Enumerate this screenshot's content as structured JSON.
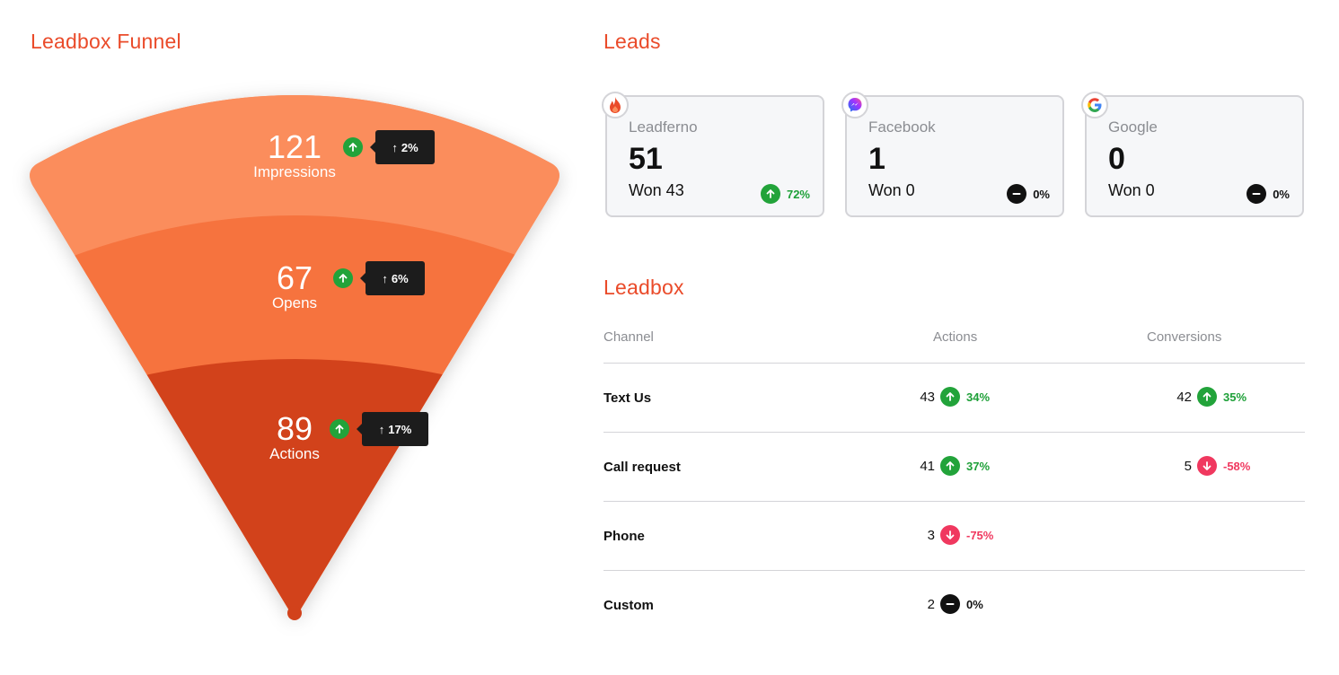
{
  "funnel": {
    "title": "Leadbox Funnel",
    "stages": [
      {
        "value": "121",
        "label": "Impressions",
        "change": "2%",
        "trend": "up"
      },
      {
        "value": "67",
        "label": "Opens",
        "change": "6%",
        "trend": "up"
      },
      {
        "value": "89",
        "label": "Actions",
        "change": "17%",
        "trend": "up"
      }
    ],
    "colors": [
      "#fb8d5c",
      "#f6733e",
      "#d2421b"
    ]
  },
  "leads": {
    "title": "Leads",
    "cards": [
      {
        "name": "Leadferno",
        "count": "51",
        "won": "Won 43",
        "change": "72%",
        "trend": "up",
        "icon": "flame-icon"
      },
      {
        "name": "Facebook",
        "count": "1",
        "won": "Won 0",
        "change": "0%",
        "trend": "flat",
        "icon": "messenger-icon"
      },
      {
        "name": "Google",
        "count": "0",
        "won": "Won 0",
        "change": "0%",
        "trend": "flat",
        "icon": "google-icon"
      }
    ]
  },
  "leadbox": {
    "title": "Leadbox",
    "headers": {
      "channel": "Channel",
      "actions": "Actions",
      "conversions": "Conversions"
    },
    "rows": [
      {
        "channel": "Text Us",
        "actions": {
          "value": "43",
          "change": "34%",
          "trend": "up"
        },
        "conversions": {
          "value": "42",
          "change": "35%",
          "trend": "up"
        }
      },
      {
        "channel": "Call request",
        "actions": {
          "value": "41",
          "change": "37%",
          "trend": "up"
        },
        "conversions": {
          "value": "5",
          "change": "-58%",
          "trend": "down"
        }
      },
      {
        "channel": "Phone",
        "actions": {
          "value": "3",
          "change": "-75%",
          "trend": "down"
        },
        "conversions": null
      },
      {
        "channel": "Custom",
        "actions": {
          "value": "2",
          "change": "0%",
          "trend": "flat"
        },
        "conversions": null
      }
    ]
  },
  "colors": {
    "accent": "#ea4b2a",
    "up": "#22a33a",
    "down": "#f0385f",
    "flat": "#111111"
  }
}
